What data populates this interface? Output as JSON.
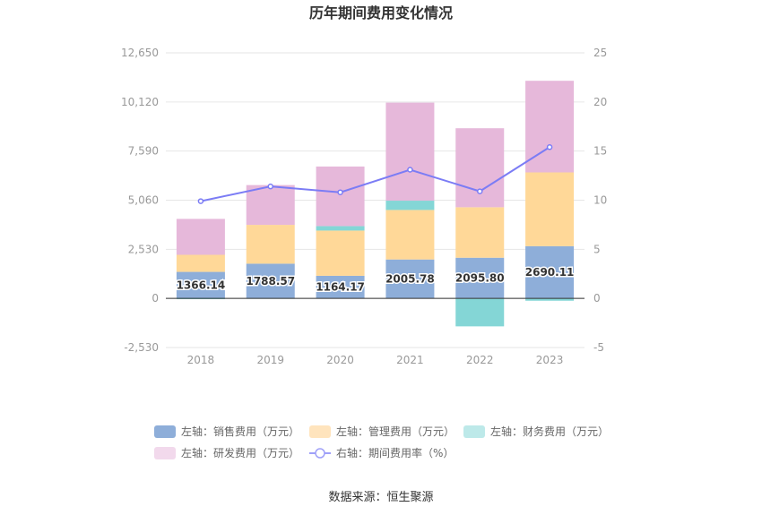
{
  "chart_data": {
    "type": "bar",
    "title": "历年期间费用变化情况",
    "categories": [
      "2018",
      "2019",
      "2020",
      "2021",
      "2022",
      "2023"
    ],
    "left_axis": {
      "ticks": [
        "12,650",
        "10,120",
        "7,590",
        "5,060",
        "2,530",
        "0",
        "-2,530"
      ],
      "ylim": [
        -2530,
        12650
      ]
    },
    "right_axis": {
      "ticks": [
        "25",
        "20",
        "15",
        "10",
        "5",
        "0",
        "-5"
      ],
      "ylim": [
        -5,
        25
      ]
    },
    "stacked": true,
    "series": [
      {
        "name": "左轴：销售费用（万元）",
        "axis": "left",
        "type": "bar",
        "color": "#8eaed9",
        "values": [
          1366.14,
          1788.57,
          1164.17,
          2005.78,
          2095.8,
          2690.11
        ]
      },
      {
        "name": "左轴：管理费用（万元）",
        "axis": "left",
        "type": "bar",
        "color": "#ffd898",
        "values": [
          880,
          2000,
          2330,
          2550,
          2600,
          3800
        ]
      },
      {
        "name": "左轴：财务费用（万元）",
        "axis": "left",
        "type": "bar",
        "color": "#84d6d6",
        "values": [
          -40,
          -20,
          230,
          480,
          -1440,
          -120
        ]
      },
      {
        "name": "左轴：研发费用（万元）",
        "axis": "left",
        "type": "bar",
        "color": "#e6b8da",
        "values": [
          1850,
          2050,
          3070,
          5050,
          4070,
          4720
        ]
      },
      {
        "name": "右轴：期间费用率（%）",
        "axis": "right",
        "type": "line",
        "color": "#7b7cf5",
        "values": [
          9.9,
          11.4,
          10.8,
          13.1,
          10.9,
          15.4
        ]
      }
    ],
    "data_labels": [
      "1366.14",
      "1788.57",
      "1164.17",
      "2005.78",
      "2095.80",
      "2690.11"
    ]
  },
  "legend": [
    {
      "label": "左轴：销售费用（万元）",
      "color": "#8eaed9",
      "kind": "box"
    },
    {
      "label": "左轴：管理费用（万元）",
      "color": "#ffe4bd",
      "kind": "box"
    },
    {
      "label": "左轴：财务费用（万元）",
      "color": "#bde9e9",
      "kind": "box"
    },
    {
      "label": "左轴：研发费用（万元）",
      "color": "#f2d9ec",
      "kind": "box"
    },
    {
      "label": "右轴：期间费用率（%）",
      "color": "#9fa0f8",
      "kind": "line"
    }
  ],
  "source": "数据来源：恒生聚源"
}
